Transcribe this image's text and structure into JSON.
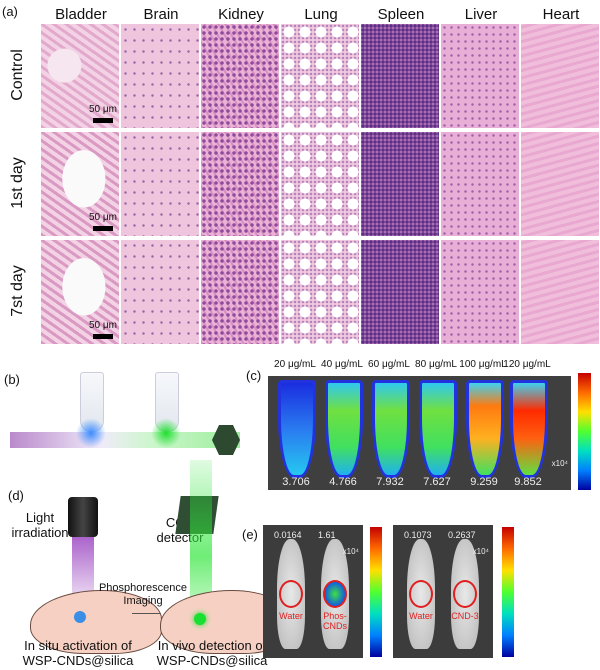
{
  "panel_a": {
    "label": "(a)",
    "columns": [
      "Bladder",
      "Brain",
      "Kidney",
      "Lung",
      "Spleen",
      "Liver",
      "Heart"
    ],
    "rows": [
      "Control",
      "1st day",
      "7st day"
    ],
    "scale_bar": "50 μm"
  },
  "panel_b": {
    "label": "(b)"
  },
  "panel_c": {
    "label": "(c)",
    "concentrations": [
      "20 μg/mL",
      "40 μg/mL",
      "60 μg/mL",
      "80 μg/mL",
      "100 μg/mL",
      "120 μg/mL"
    ],
    "values": [
      "3.706",
      "4.766",
      "7.932",
      "7.627",
      "9.259",
      "9.852"
    ],
    "values_numeric": [
      3.706,
      4.766,
      7.932,
      7.627,
      9.259,
      9.852
    ],
    "unit": "x10⁴"
  },
  "panel_d": {
    "label": "(d)",
    "light": "Light irradiation",
    "ccd": "CCD detector",
    "arrow": "Phosphorescence Imaging",
    "caption_left": "In situ activation of WSP-CNDs@silica",
    "caption_right": "In vivo detection of WSP-CNDs@silica"
  },
  "panel_e": {
    "label": "(e)",
    "images": [
      {
        "values": [
          "0.0164",
          "1.61"
        ],
        "labels": [
          "Water",
          "Phos-CNDs"
        ],
        "unit": "x10⁴"
      },
      {
        "values": [
          "0.1073",
          "0.2637"
        ],
        "labels": [
          "Water",
          "CND-3"
        ],
        "unit": "x10⁴"
      }
    ]
  }
}
